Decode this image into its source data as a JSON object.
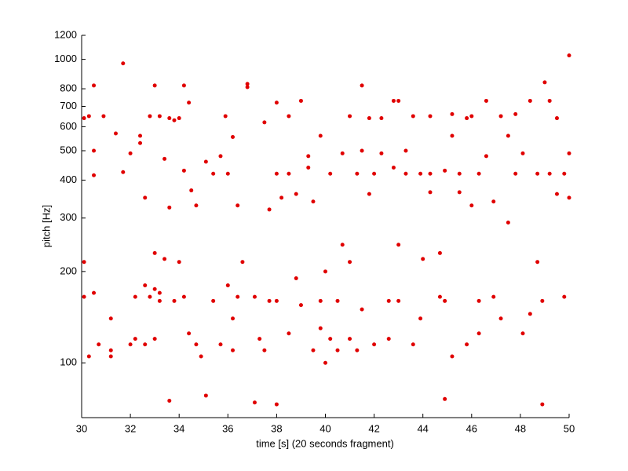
{
  "chart_data": {
    "type": "scatter",
    "xlabel": "time [s] (20 seconds fragment)",
    "ylabel": "pitch [Hz]",
    "color": "#e00000",
    "yscale": "log",
    "xlim": [
      30,
      50
    ],
    "xticks": [
      30,
      32,
      34,
      36,
      38,
      40,
      42,
      44,
      46,
      48,
      50
    ],
    "ylim": [
      66,
      1200
    ],
    "yticks": [
      100,
      200,
      300,
      400,
      500,
      600,
      700,
      800,
      1000,
      1200
    ],
    "x": [
      30.1,
      30.1,
      30.1,
      30.3,
      30.3,
      30.5,
      30.5,
      30.5,
      30.5,
      30.7,
      30.9,
      31.2,
      31.2,
      31.2,
      31.4,
      31.7,
      31.7,
      32.0,
      32.0,
      32.2,
      32.2,
      32.4,
      32.4,
      32.6,
      32.6,
      32.6,
      32.8,
      32.8,
      33.0,
      33.0,
      33.0,
      33.0,
      33.2,
      33.2,
      33.2,
      33.4,
      33.4,
      33.6,
      33.6,
      33.6,
      33.8,
      33.8,
      34.0,
      34.0,
      34.2,
      34.2,
      34.2,
      34.4,
      34.4,
      34.5,
      34.7,
      34.7,
      34.9,
      35.1,
      35.1,
      35.4,
      35.4,
      35.7,
      35.7,
      35.9,
      36.0,
      36.0,
      36.2,
      36.2,
      36.2,
      36.4,
      36.4,
      36.6,
      36.8,
      36.8,
      37.1,
      37.1,
      37.3,
      37.5,
      37.5,
      37.7,
      37.7,
      38.0,
      38.0,
      38.0,
      38.0,
      38.2,
      38.5,
      38.5,
      38.5,
      38.8,
      38.8,
      39.0,
      39.0,
      39.3,
      39.3,
      39.5,
      39.5,
      39.8,
      39.8,
      39.8,
      40.0,
      40.0,
      40.2,
      40.2,
      40.5,
      40.5,
      40.7,
      40.7,
      41.0,
      41.0,
      41.0,
      41.3,
      41.3,
      41.5,
      41.5,
      41.5,
      41.8,
      41.8,
      42.0,
      42.0,
      42.3,
      42.3,
      42.6,
      42.6,
      42.8,
      42.8,
      43.0,
      43.0,
      43.0,
      43.3,
      43.3,
      43.6,
      43.6,
      43.9,
      43.9,
      44.0,
      44.3,
      44.3,
      44.3,
      44.7,
      44.7,
      44.9,
      44.9,
      44.9,
      45.2,
      45.2,
      45.2,
      45.5,
      45.5,
      45.8,
      45.8,
      46.0,
      46.0,
      46.3,
      46.3,
      46.3,
      46.6,
      46.6,
      46.9,
      46.9,
      47.2,
      47.2,
      47.5,
      47.5,
      47.8,
      47.8,
      48.1,
      48.1,
      48.4,
      48.4,
      48.7,
      48.7,
      48.9,
      48.9,
      49.0,
      49.2,
      49.2,
      49.5,
      49.5,
      49.8,
      49.8,
      50.0,
      50.0,
      50.0
    ],
    "values": [
      165,
      640,
      215,
      105,
      650,
      820,
      500,
      415,
      170,
      115,
      650,
      110,
      105,
      140,
      570,
      970,
      425,
      115,
      490,
      165,
      120,
      560,
      530,
      180,
      115,
      350,
      650,
      165,
      820,
      175,
      120,
      230,
      170,
      650,
      160,
      470,
      220,
      640,
      325,
      75,
      630,
      160,
      215,
      640,
      820,
      430,
      165,
      720,
      125,
      370,
      330,
      115,
      105,
      460,
      78,
      160,
      420,
      115,
      480,
      650,
      420,
      180,
      555,
      140,
      110,
      330,
      165,
      215,
      830,
      810,
      165,
      74,
      120,
      620,
      110,
      320,
      160,
      720,
      73,
      160,
      420,
      350,
      650,
      125,
      420,
      190,
      360,
      730,
      155,
      480,
      440,
      340,
      110,
      560,
      130,
      160,
      100,
      200,
      420,
      120,
      160,
      110,
      490,
      245,
      120,
      650,
      215,
      420,
      110,
      820,
      500,
      150,
      360,
      640,
      115,
      420,
      640,
      490,
      160,
      120,
      730,
      440,
      730,
      245,
      160,
      500,
      420,
      650,
      115,
      420,
      140,
      220,
      650,
      365,
      420,
      230,
      165,
      76,
      430,
      160,
      660,
      560,
      105,
      420,
      365,
      640,
      115,
      330,
      650,
      420,
      125,
      160,
      730,
      480,
      340,
      165,
      650,
      140,
      560,
      290,
      420,
      660,
      490,
      125,
      730,
      145,
      215,
      420,
      160,
      73,
      840,
      420,
      730,
      640,
      360,
      420,
      165,
      1030,
      490,
      350
    ]
  }
}
